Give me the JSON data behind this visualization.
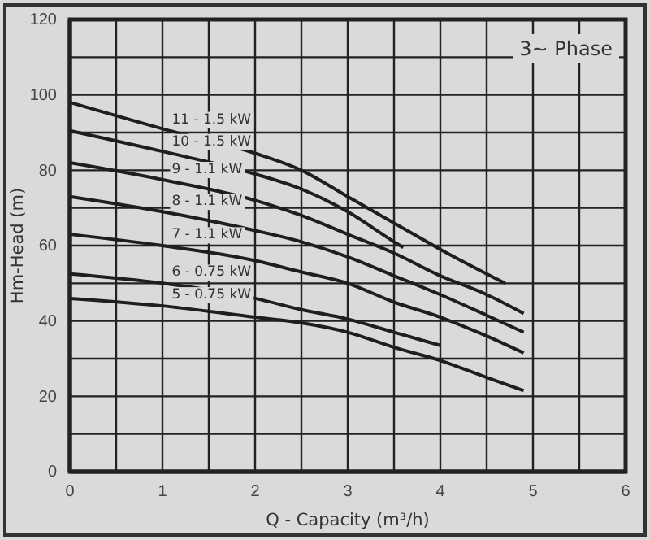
{
  "chart_data": {
    "type": "line",
    "title": "3~ Phase",
    "xlabel": "Q - Capacity (m³/h)",
    "ylabel": "Hm-Head (m)",
    "xlim": [
      0,
      6
    ],
    "ylim": [
      0,
      120
    ],
    "xticks": [
      0,
      {
        "value": 0.5,
        "label": null
      },
      1,
      {
        "value": 1.5,
        "label": null
      },
      2,
      {
        "value": 2.5,
        "label": null
      },
      3,
      {
        "value": 3.5,
        "label": null
      },
      4,
      {
        "value": 4.5,
        "label": null
      },
      5,
      {
        "value": 5.5,
        "label": null
      },
      6
    ],
    "yticks": [
      0,
      {
        "value": 10,
        "label": null
      },
      20,
      {
        "value": 30,
        "label": null
      },
      40,
      {
        "value": 50,
        "label": null
      },
      60,
      {
        "value": 70,
        "label": null
      },
      80,
      {
        "value": 90,
        "label": null
      },
      100,
      {
        "value": 110,
        "label": null
      },
      120
    ],
    "grid": true,
    "marker": "none",
    "line_style": "solid",
    "series": [
      {
        "name": "11 - 1.5 kW",
        "color": "#1e1e1e",
        "x": [
          0,
          1,
          2,
          2.5,
          3,
          3.5,
          4,
          4.7
        ],
        "values": [
          98,
          91,
          84.5,
          80,
          73,
          66,
          59,
          50
        ]
      },
      {
        "name": "10 - 1.5 kW",
        "color": "#1e1e1e",
        "x": [
          0,
          1,
          2,
          2.5,
          3,
          3.5,
          3.6
        ],
        "values": [
          90.5,
          85,
          79,
          75,
          69,
          61,
          59.5
        ]
      },
      {
        "name": "9 - 1.1 kW",
        "color": "#1e1e1e",
        "x": [
          0,
          1,
          2,
          2.5,
          3,
          3.5,
          4,
          4.5,
          4.9
        ],
        "values": [
          82,
          77.5,
          72,
          68,
          63,
          58,
          52,
          47,
          42
        ]
      },
      {
        "name": "8 - 1.1 kW",
        "color": "#1e1e1e",
        "x": [
          0,
          1,
          2,
          2.5,
          3,
          3.5,
          4,
          4.5,
          4.9
        ],
        "values": [
          73,
          69,
          64,
          61,
          57,
          52,
          47,
          41.5,
          37
        ]
      },
      {
        "name": "7 - 1.1 kW",
        "color": "#1e1e1e",
        "x": [
          0,
          1,
          2,
          2.5,
          3,
          3.5,
          4,
          4.5,
          4.9
        ],
        "values": [
          63,
          60,
          56,
          53,
          50,
          45,
          41,
          36,
          31.5
        ]
      },
      {
        "name": "6 - 0.75 kW",
        "color": "#1e1e1e",
        "x": [
          0,
          1,
          2,
          2.5,
          3,
          3.5,
          4
        ],
        "values": [
          52.5,
          50,
          46,
          43,
          40.5,
          37,
          33.5
        ]
      },
      {
        "name": "5 - 0.75 kW",
        "color": "#1e1e1e",
        "x": [
          0,
          1,
          2,
          2.5,
          3,
          3.5,
          4,
          4.5,
          4.9
        ],
        "values": [
          46,
          44,
          41,
          39.5,
          37,
          33,
          29.5,
          25,
          21.5
        ]
      }
    ]
  }
}
